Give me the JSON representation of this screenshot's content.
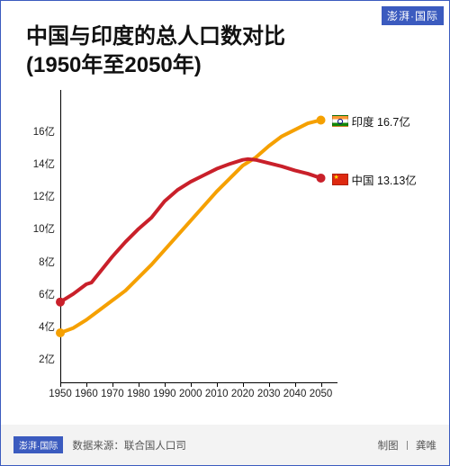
{
  "logo_text": "澎湃·国际",
  "title_line1": "中国与印度的总人口数对比",
  "title_line2": "(1950年至2050年)",
  "chart": {
    "type": "line",
    "x_axis": {
      "min": 1950,
      "max": 2055,
      "ticks": [
        1950,
        1960,
        1970,
        1980,
        1990,
        2000,
        2010,
        2020,
        2030,
        2040,
        2050
      ],
      "tick_labels": [
        "1950",
        "1960",
        "1970",
        "1980",
        "1990",
        "2000",
        "2010",
        "2020",
        "2030",
        "2040",
        "2050"
      ],
      "label_fontsize": 11.5
    },
    "y_axis": {
      "min": 0.5,
      "max": 18,
      "unit": "亿",
      "ticks": [
        2,
        4,
        6,
        8,
        10,
        12,
        14,
        16
      ],
      "tick_labels": [
        "2亿",
        "4亿",
        "6亿",
        "8亿",
        "10亿",
        "12亿",
        "14亿",
        "16亿"
      ],
      "label_fontsize": 11.5
    },
    "axis_color": "#000000",
    "background_color": "#ffffff",
    "line_width": 4,
    "marker_radius": 5,
    "series": [
      {
        "name": "india",
        "label": "印度 16.7亿",
        "color": "#f5a000",
        "flag": "india",
        "points": [
          [
            1950,
            3.6
          ],
          [
            1955,
            3.9
          ],
          [
            1960,
            4.4
          ],
          [
            1965,
            5.0
          ],
          [
            1970,
            5.6
          ],
          [
            1975,
            6.2
          ],
          [
            1980,
            7.0
          ],
          [
            1985,
            7.8
          ],
          [
            1990,
            8.7
          ],
          [
            1995,
            9.6
          ],
          [
            2000,
            10.5
          ],
          [
            2005,
            11.4
          ],
          [
            2010,
            12.3
          ],
          [
            2015,
            13.1
          ],
          [
            2020,
            13.9
          ],
          [
            2025,
            14.4
          ],
          [
            2030,
            15.1
          ],
          [
            2035,
            15.7
          ],
          [
            2040,
            16.1
          ],
          [
            2045,
            16.5
          ],
          [
            2050,
            16.7
          ]
        ]
      },
      {
        "name": "china",
        "label": "中国 13.13亿",
        "color": "#c9202a",
        "flag": "china",
        "points": [
          [
            1950,
            5.5
          ],
          [
            1955,
            6.0
          ],
          [
            1960,
            6.6
          ],
          [
            1962,
            6.7
          ],
          [
            1970,
            8.3
          ],
          [
            1975,
            9.2
          ],
          [
            1980,
            10.0
          ],
          [
            1985,
            10.7
          ],
          [
            1990,
            11.7
          ],
          [
            1995,
            12.4
          ],
          [
            2000,
            12.9
          ],
          [
            2005,
            13.3
          ],
          [
            2010,
            13.7
          ],
          [
            2015,
            14.0
          ],
          [
            2020,
            14.25
          ],
          [
            2022,
            14.3
          ],
          [
            2025,
            14.25
          ],
          [
            2030,
            14.05
          ],
          [
            2035,
            13.85
          ],
          [
            2040,
            13.6
          ],
          [
            2045,
            13.4
          ],
          [
            2050,
            13.13
          ]
        ]
      }
    ]
  },
  "footer": {
    "source_label": "数据来源：",
    "source_value": "联合国人口司",
    "credit_label": "制图",
    "credit_value": "龚唯"
  }
}
